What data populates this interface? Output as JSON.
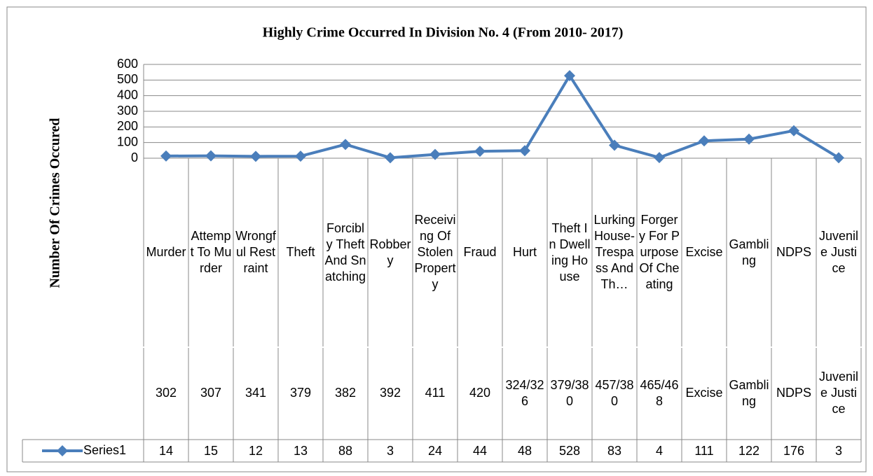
{
  "chart_data": {
    "type": "line",
    "title": "Highly Crime Occurred In Division No. 4 (From 2010- 2017)",
    "y_label": "Number Of Crimes Occured",
    "categories": [
      "Murder",
      "Attempt To Murder",
      "Wrongful Restraint",
      "Theft",
      "Forcibly Theft And Snatching",
      "Robbery",
      "Receiving Of Stolen Property",
      "Fraud",
      "Hurt",
      "Theft In Dwelling House",
      "Lurking House-Trespass And Th…",
      "Forgery For Purpose Of Cheating",
      "Excise",
      "Gambling",
      "NDPS",
      "Juvenile Justice"
    ],
    "subcategories": [
      "302",
      "307",
      "341",
      "379",
      "382",
      "392",
      "411",
      "420",
      "324/326",
      "379/380",
      "457/380",
      "465/468",
      "Excise",
      "Gambling",
      "NDPS",
      "Juvenile Justice"
    ],
    "series": [
      {
        "name": "Series1",
        "color": "#4a7ebb",
        "values": [
          14,
          15,
          12,
          13,
          88,
          3,
          24,
          44,
          48,
          528,
          83,
          4,
          111,
          122,
          176,
          3
        ]
      }
    ],
    "ylim": [
      0,
      600
    ],
    "yticks": [
      0,
      100,
      200,
      300,
      400,
      500,
      600
    ],
    "grid": true
  }
}
